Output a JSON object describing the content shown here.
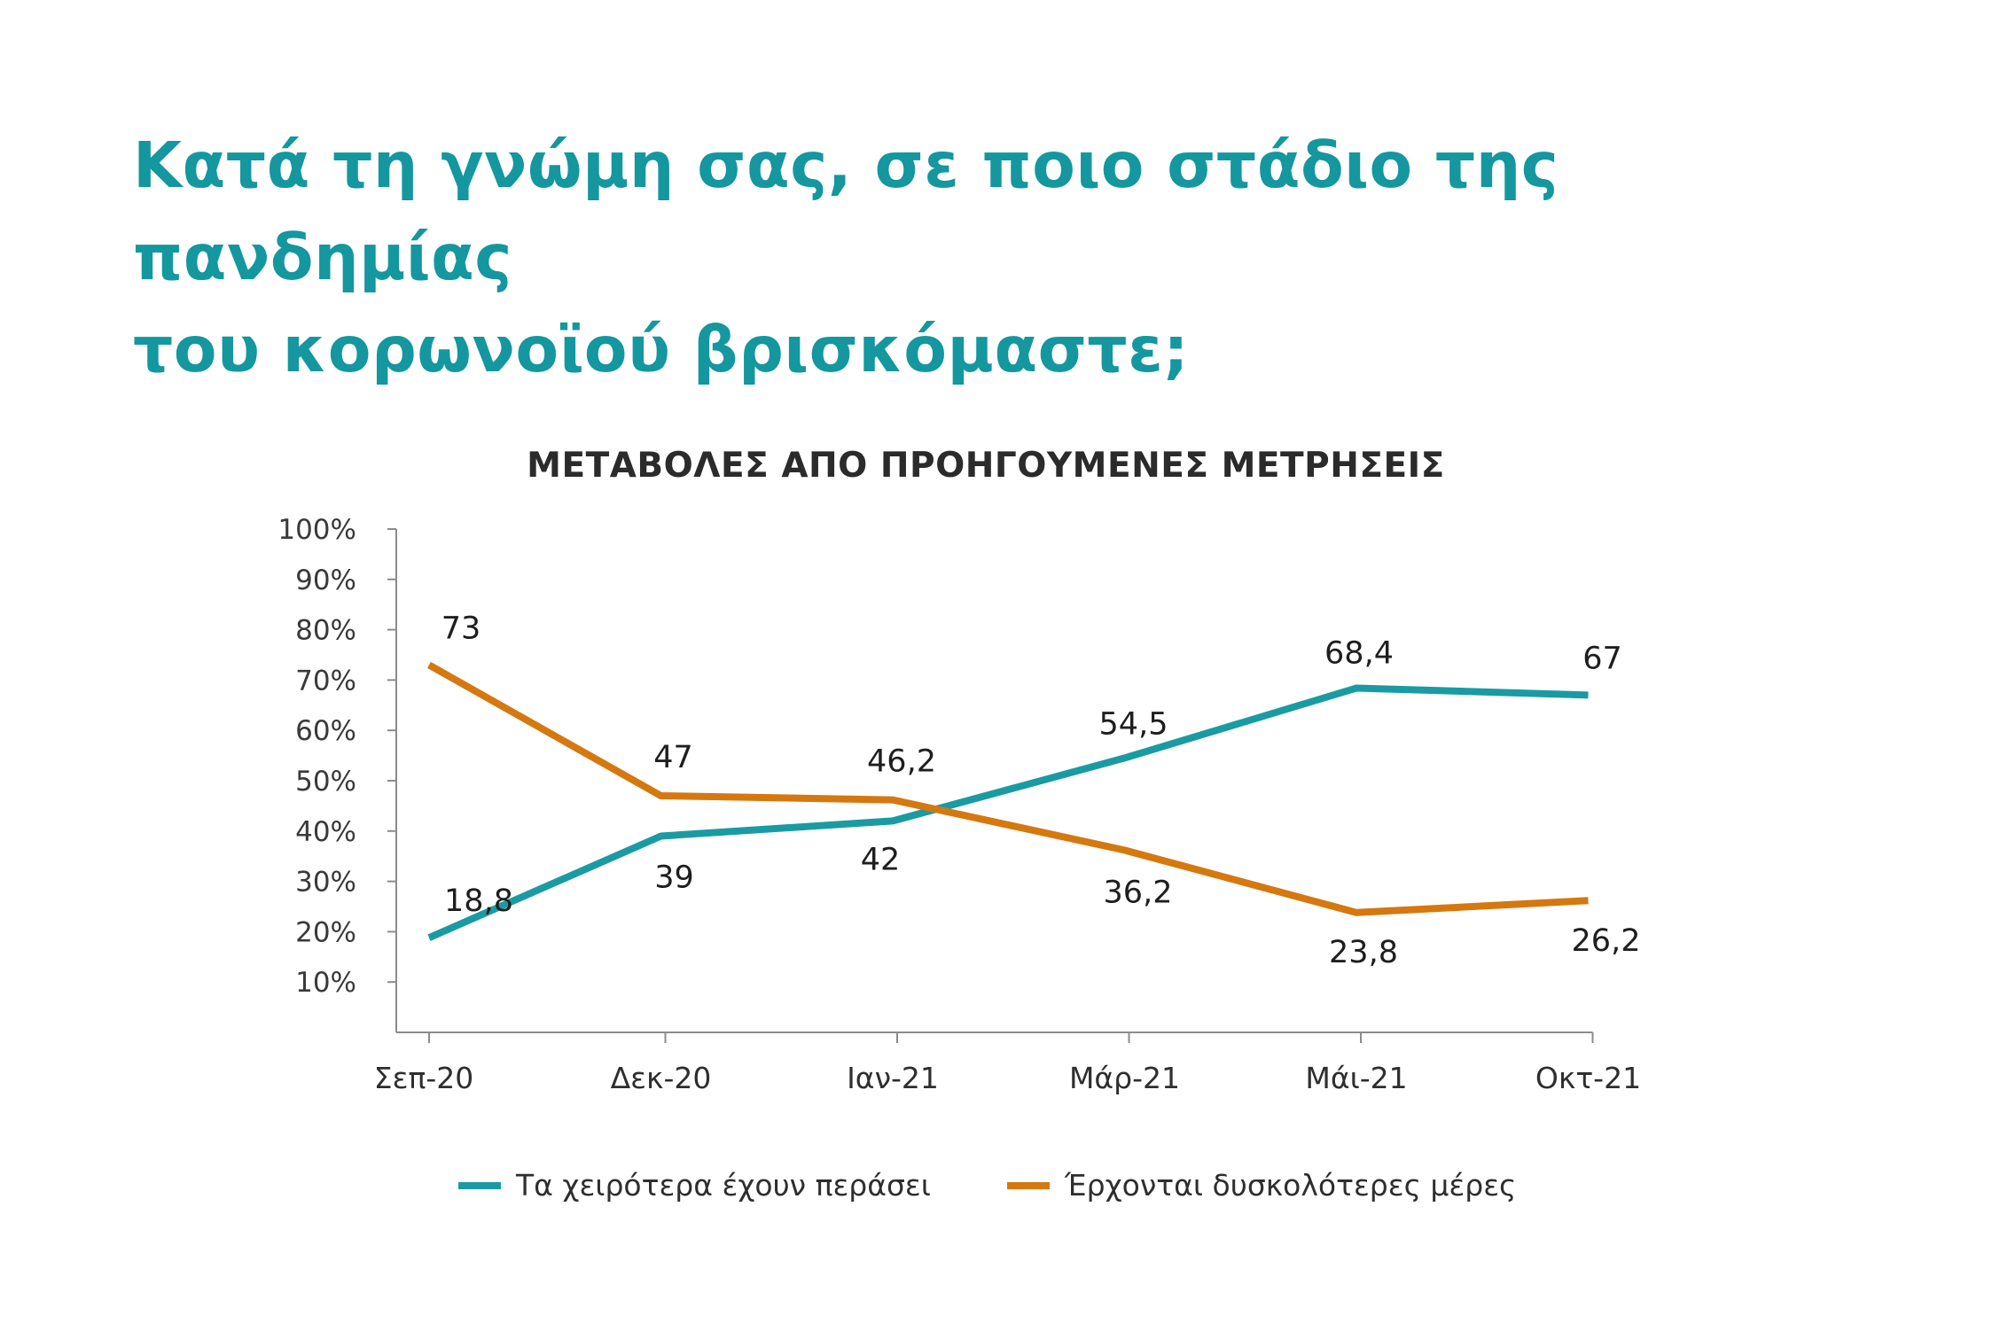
{
  "headline": {
    "line1": "Κατά τη γνώμη σας, σε ποιο στάδιο της πανδημίας",
    "line2": "του κορωνοϊού βρισκόμαστε;"
  },
  "chart_data": {
    "type": "line",
    "title": "ΜΕΤΑΒΟΛΕΣ ΑΠΟ ΠΡΟΗΓΟΥΜΕΝΕΣ ΜΕΤΡΗΣΕΙΣ",
    "categories": [
      "Σεπ-20",
      "Δεκ-20",
      "Ιαν-21",
      "Μάρ-21",
      "Μάι-21",
      "Οκτ-21"
    ],
    "y_ticks": [
      "10%",
      "20%",
      "30%",
      "40%",
      "50%",
      "60%",
      "70%",
      "80%",
      "90%",
      "100%"
    ],
    "ylim": [
      0,
      100
    ],
    "grid": false,
    "legend_position": "bottom",
    "series": [
      {
        "name": "Τα χειρότερα έχουν περάσει",
        "color": "#1a9ba3",
        "values": [
          18.8,
          39,
          42,
          54.5,
          68.4,
          67
        ],
        "labels": [
          "18,8",
          "39",
          "42",
          "54,5",
          "68,4",
          "67"
        ]
      },
      {
        "name": "Έρχονται δυσκολότερες μέρες",
        "color": "#d5780f",
        "values": [
          73,
          47,
          46.2,
          36.2,
          23.8,
          26.2
        ],
        "labels": [
          "73",
          "47",
          "46,2",
          "36,2",
          "23,8",
          "26,2"
        ]
      }
    ]
  }
}
